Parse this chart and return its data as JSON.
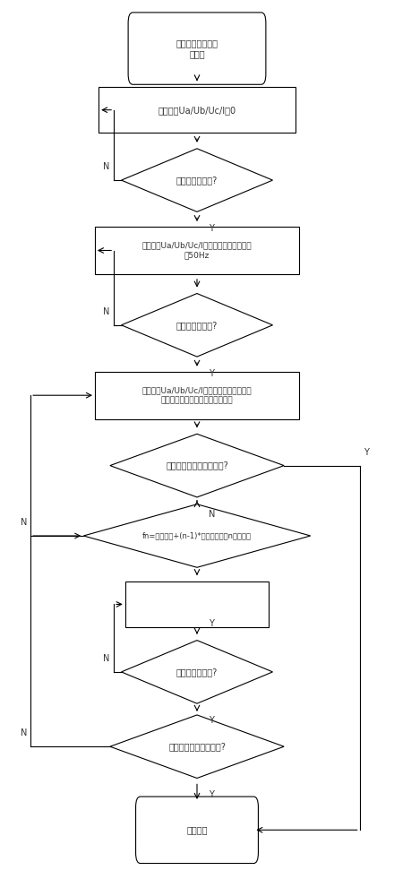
{
  "bg_color": "#ffffff",
  "ec": "#000000",
  "fc": "#ffffff",
  "tc": "#333333",
  "lw": 0.8,
  "fs": 7.0,
  "start_text": "低频减载频率动作\n值测试",
  "box1_text": "仪器输出Ua/Ub/Uc/I为0",
  "dia1_text": "初值时间是否到?",
  "box2_text": "仪器输出Ua/Ub/Uc/I幅值、相位初值、频率\n为50Hz",
  "dia2_text": "初值时间是否到?",
  "box3_text": "仪器输出Ua/Ub/Uc/I幅值、相位初值，按频\n率的滑差速率改变电压电流的频率",
  "dia3_text": "判保护开入接点是否动作?",
  "dia4_text": "fn=频率初值+(n-1)*频率步长（第n次循环）",
  "dia5_text": "终值时间是否到?",
  "dia6_text": "频率是否降到终止频率?",
  "end_text": "试验结束",
  "Y": "Y",
  "N": "N"
}
